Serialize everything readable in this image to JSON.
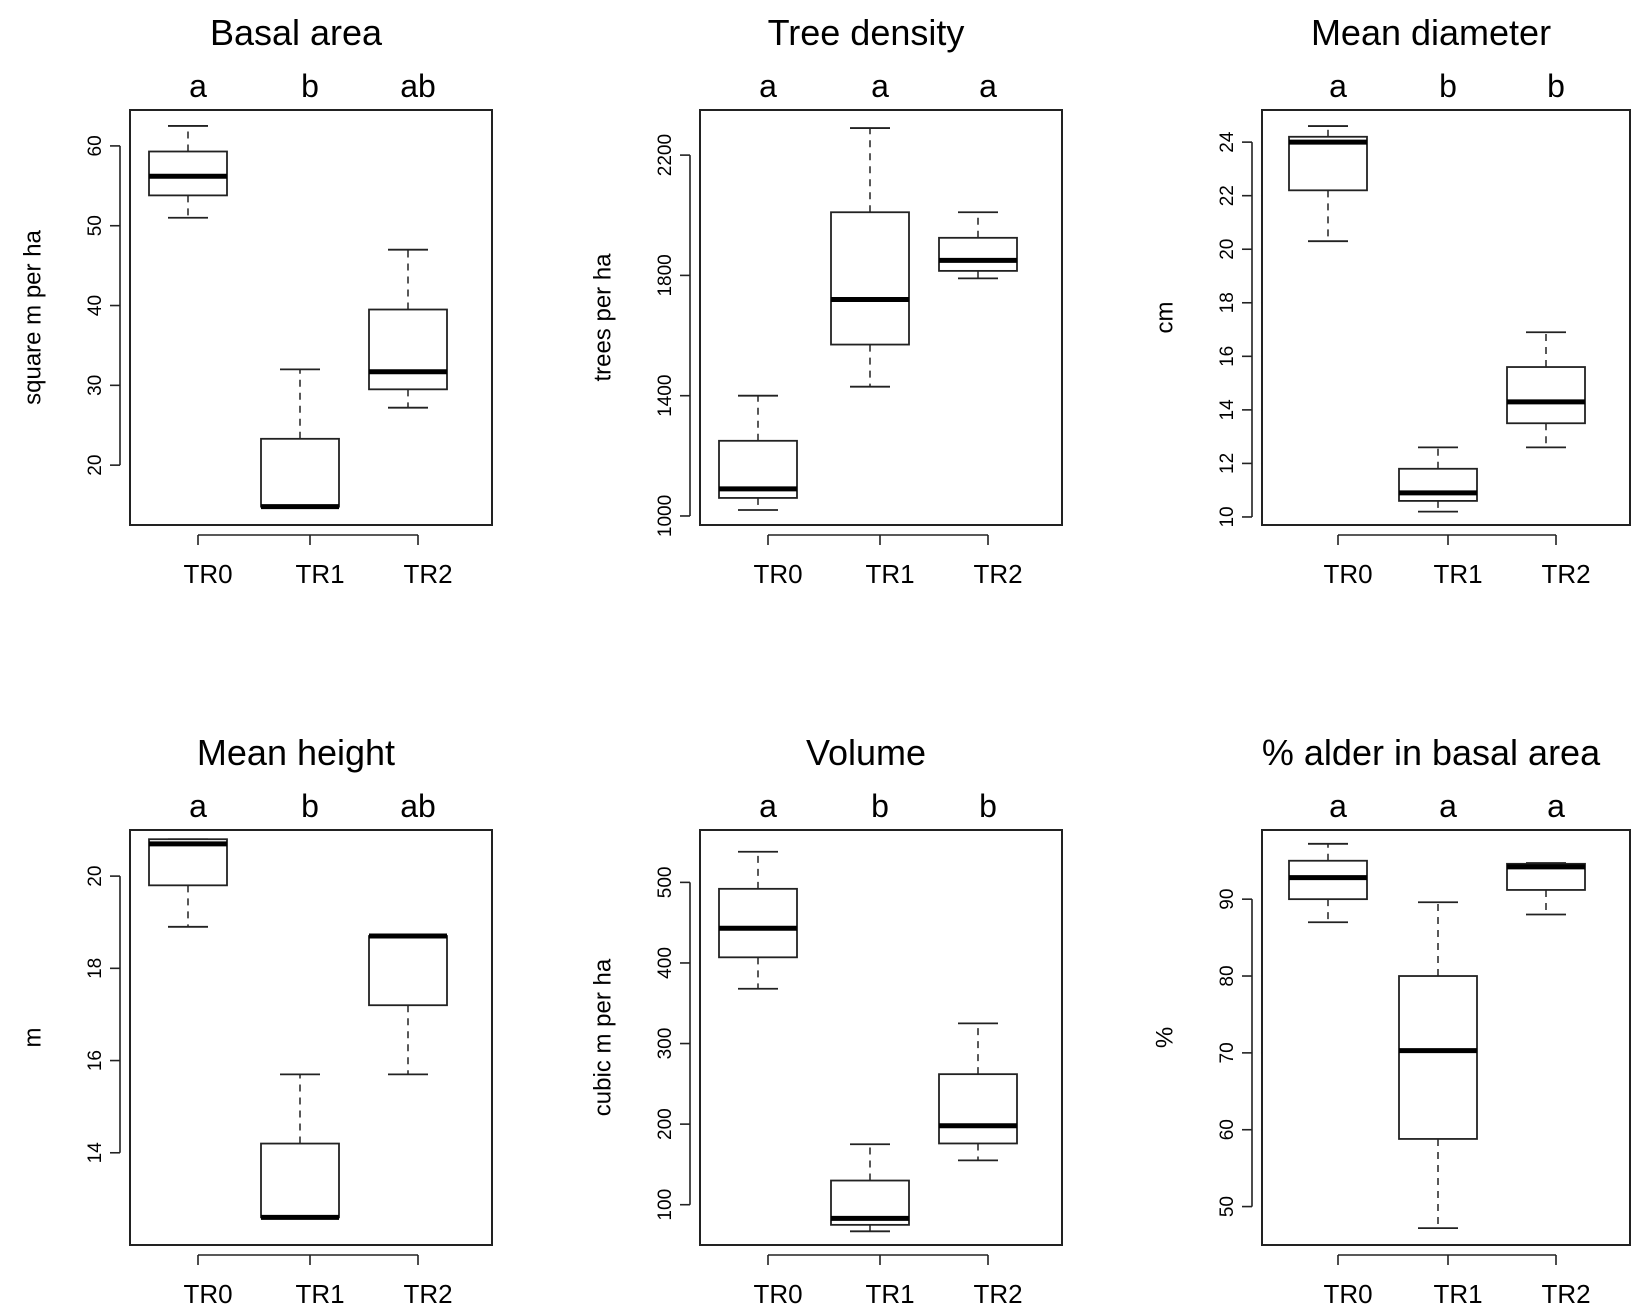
{
  "chart_data": [
    {
      "type": "boxplot",
      "title": "Basal area",
      "ylabel": "square m per ha",
      "categories": [
        "TR0",
        "TR1",
        "TR2"
      ],
      "letters": [
        "a",
        "b",
        "ab"
      ],
      "ylim": [
        12.5,
        64.5
      ],
      "yticks": [
        20,
        30,
        40,
        50,
        60
      ],
      "ytick_labels": [
        "20",
        "30",
        "40",
        "50",
        "60"
      ],
      "boxes": [
        {
          "min": 51.0,
          "q1": 53.8,
          "median": 56.2,
          "q3": 59.3,
          "max": 62.5
        },
        {
          "min": 14.8,
          "q1": 14.8,
          "median": 14.8,
          "q3": 23.3,
          "max": 32.0
        },
        {
          "min": 27.2,
          "q1": 29.5,
          "median": 31.7,
          "q3": 39.5,
          "max": 47.0
        }
      ]
    },
    {
      "type": "boxplot",
      "title": "Tree density",
      "ylabel": "trees per ha",
      "categories": [
        "TR0",
        "TR1",
        "TR2"
      ],
      "letters": [
        "a",
        "a",
        "a"
      ],
      "ylim": [
        970,
        2350
      ],
      "yticks": [
        1000,
        1400,
        1800,
        2200
      ],
      "ytick_labels": [
        "1000",
        "1400",
        "1800",
        "2200"
      ],
      "boxes": [
        {
          "min": 1020,
          "q1": 1060,
          "median": 1090,
          "q3": 1250,
          "max": 1400
        },
        {
          "min": 1430,
          "q1": 1570,
          "median": 1720,
          "q3": 2010,
          "max": 2290
        },
        {
          "min": 1790,
          "q1": 1815,
          "median": 1850,
          "q3": 1925,
          "max": 2010
        }
      ]
    },
    {
      "type": "boxplot",
      "title": "Mean diameter",
      "ylabel": "cm",
      "categories": [
        "TR0",
        "TR1",
        "TR2"
      ],
      "letters": [
        "a",
        "b",
        "b"
      ],
      "ylim": [
        9.7,
        25.2
      ],
      "yticks": [
        10,
        12,
        14,
        16,
        18,
        20,
        22,
        24
      ],
      "ytick_labels": [
        "10",
        "12",
        "14",
        "16",
        "18",
        "20",
        "22",
        "24"
      ],
      "boxes": [
        {
          "min": 20.3,
          "q1": 22.2,
          "median": 24.0,
          "q3": 24.2,
          "max": 24.6
        },
        {
          "min": 10.2,
          "q1": 10.6,
          "median": 10.9,
          "q3": 11.8,
          "max": 12.6
        },
        {
          "min": 12.6,
          "q1": 13.5,
          "median": 14.3,
          "q3": 15.6,
          "max": 16.9
        }
      ]
    },
    {
      "type": "boxplot",
      "title": "Mean height",
      "ylabel": "m",
      "categories": [
        "TR0",
        "TR1",
        "TR2"
      ],
      "letters": [
        "a",
        "b",
        "ab"
      ],
      "ylim": [
        12.0,
        21.0
      ],
      "yticks": [
        14,
        16,
        18,
        20
      ],
      "ytick_labels": [
        "14",
        "16",
        "18",
        "20"
      ],
      "boxes": [
        {
          "min": 18.9,
          "q1": 19.8,
          "median": 20.7,
          "q3": 20.8,
          "max": 20.8
        },
        {
          "min": 12.6,
          "q1": 12.6,
          "median": 12.6,
          "q3": 14.2,
          "max": 15.7
        },
        {
          "min": 15.7,
          "q1": 17.2,
          "median": 18.7,
          "q3": 18.7,
          "max": 18.7
        }
      ]
    },
    {
      "type": "boxplot",
      "title": "Volume",
      "ylabel": "cubic m per ha",
      "categories": [
        "TR0",
        "TR1",
        "TR2"
      ],
      "letters": [
        "a",
        "b",
        "b"
      ],
      "ylim": [
        50,
        565
      ],
      "yticks": [
        100,
        200,
        300,
        400,
        500
      ],
      "ytick_labels": [
        "100",
        "200",
        "300",
        "400",
        "500"
      ],
      "boxes": [
        {
          "min": 368,
          "q1": 407,
          "median": 443,
          "q3": 492,
          "max": 538
        },
        {
          "min": 67,
          "q1": 75,
          "median": 83,
          "q3": 130,
          "max": 175
        },
        {
          "min": 155,
          "q1": 176,
          "median": 198,
          "q3": 262,
          "max": 325
        }
      ]
    },
    {
      "type": "boxplot",
      "title": "% alder in basal area",
      "ylabel": "%",
      "categories": [
        "TR0",
        "TR1",
        "TR2"
      ],
      "letters": [
        "a",
        "a",
        "a"
      ],
      "ylim": [
        45,
        99
      ],
      "yticks": [
        50,
        60,
        70,
        80,
        90
      ],
      "ytick_labels": [
        "50",
        "60",
        "70",
        "80",
        "90"
      ],
      "boxes": [
        {
          "min": 87.0,
          "q1": 90.0,
          "median": 92.8,
          "q3": 95.0,
          "max": 97.2
        },
        {
          "min": 47.2,
          "q1": 58.8,
          "median": 70.3,
          "q3": 80.0,
          "max": 89.6
        },
        {
          "min": 88.0,
          "q1": 91.2,
          "median": 94.2,
          "q3": 94.6,
          "max": 94.7
        }
      ]
    }
  ]
}
